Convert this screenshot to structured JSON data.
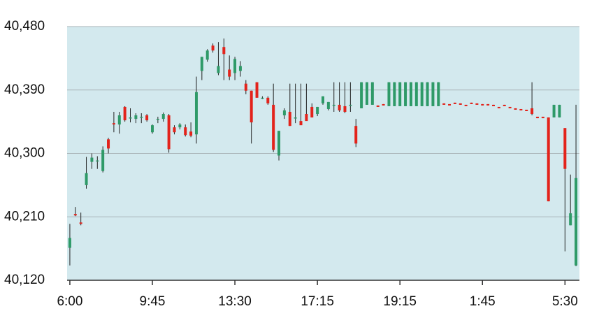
{
  "chart_data": {
    "type": "candlestick",
    "categories": [
      "6:00",
      null,
      null,
      null,
      null,
      null,
      null,
      null,
      null,
      null,
      null,
      null,
      null,
      null,
      null,
      "9:45",
      null,
      null,
      null,
      null,
      null,
      null,
      null,
      null,
      null,
      null,
      null,
      null,
      null,
      null,
      "13:30",
      null,
      null,
      null,
      null,
      null,
      null,
      null,
      null,
      null,
      null,
      null,
      null,
      null,
      null,
      "17:15",
      null,
      null,
      null,
      null,
      null,
      null,
      null,
      null,
      null,
      null,
      null,
      null,
      null,
      null,
      "19:15",
      null,
      null,
      null,
      null,
      null,
      null,
      null,
      null,
      null,
      null,
      null,
      null,
      null,
      null,
      "1:45",
      null,
      null,
      null,
      null,
      null,
      null,
      null,
      null,
      null,
      null,
      null,
      null,
      null,
      null,
      "5:30",
      null,
      null
    ],
    "open": [
      40166,
      40214,
      40202,
      40255,
      40288,
      40290,
      40275,
      40320,
      40343,
      40341,
      40366,
      40351,
      40349,
      40352,
      40354,
      40330,
      40349,
      40349,
      40354,
      40337,
      40337,
      40337,
      40331,
      40327,
      40417,
      40433,
      40453,
      40414,
      40451,
      40419,
      40414,
      40417,
      40399,
      40389,
      40401,
      40379,
      40379,
      40369,
      40297,
      40354,
      40359,
      40351,
      40346,
      40356,
      40366,
      40356,
      40371,
      40363,
      40369,
      40369,
      40367,
      40369,
      40339,
      40364,
      40369,
      40369,
      40368,
      40370,
      40367,
      40367,
      40367,
      40367,
      40367,
      40367,
      40367,
      40367,
      40367,
      40367,
      40371,
      40370,
      40372,
      40371,
      40369,
      40372,
      40371,
      40370,
      40370,
      40369,
      40366,
      40369,
      40366,
      40364,
      40363,
      40362,
      40364,
      40352,
      40352,
      40351,
      40351,
      40351,
      40336,
      40198,
      40141
    ],
    "high": [
      40200,
      40224,
      40216,
      40295,
      40300,
      40296,
      40310,
      40322,
      40359,
      40359,
      40367,
      40364,
      40357,
      40357,
      40356,
      40341,
      40352,
      40358,
      40356,
      40340,
      40343,
      40341,
      40344,
      40409,
      40437,
      40448,
      40456,
      40458,
      40463,
      40439,
      40437,
      40431,
      40404,
      40389,
      40401,
      40381,
      40381,
      40399,
      40332,
      40364,
      40399,
      40399,
      40399,
      40399,
      40371,
      40366,
      40381,
      40373,
      40401,
      40401,
      40401,
      40401,
      40349,
      40401,
      40401,
      40401,
      40368,
      40370,
      40401,
      40401,
      40401,
      40401,
      40401,
      40401,
      40401,
      40401,
      40401,
      40401,
      40371,
      40370,
      40372,
      40371,
      40369,
      40372,
      40371,
      40370,
      40370,
      40369,
      40366,
      40369,
      40366,
      40364,
      40363,
      40362,
      40401,
      40352,
      40352,
      40351,
      40369,
      40369,
      40336,
      40270,
      40369
    ],
    "low": [
      40141,
      40211,
      40198,
      40250,
      40278,
      40278,
      40273,
      40300,
      40330,
      40328,
      40345,
      40344,
      40343,
      40343,
      40345,
      40328,
      40343,
      40345,
      40301,
      40327,
      40334,
      40324,
      40323,
      40314,
      40404,
      40430,
      40443,
      40411,
      40404,
      40404,
      40404,
      40409,
      40384,
      40314,
      40379,
      40377,
      40369,
      40302,
      40290,
      40349,
      40339,
      40343,
      40343,
      40349,
      40351,
      40353,
      40369,
      40361,
      40359,
      40359,
      40357,
      40359,
      40309,
      40364,
      40369,
      40369,
      40366,
      40368,
      40367,
      40367,
      40367,
      40367,
      40367,
      40367,
      40367,
      40367,
      40367,
      40367,
      40369,
      40368,
      40370,
      40369,
      40367,
      40370,
      40369,
      40368,
      40368,
      40367,
      40364,
      40367,
      40364,
      40362,
      40361,
      40360,
      40354,
      40350,
      40350,
      40232,
      40351,
      40351,
      40161,
      40198,
      40140
    ],
    "close": [
      40180,
      40212,
      40200,
      40272,
      40294,
      40290,
      40305,
      40307,
      40341,
      40354,
      40347,
      40351,
      40354,
      40352,
      40347,
      40340,
      40349,
      40356,
      40306,
      40330,
      40341,
      40326,
      40325,
      40387,
      40437,
      40446,
      40446,
      40424,
      40441,
      40409,
      40434,
      40424,
      40389,
      40344,
      40379,
      40379,
      40371,
      40305,
      40332,
      40361,
      40339,
      40351,
      40340,
      40346,
      40351,
      40366,
      40381,
      40373,
      40369,
      40361,
      40359,
      40369,
      40314,
      40401,
      40401,
      40401,
      40366,
      40368,
      40401,
      40401,
      40401,
      40401,
      40401,
      40401,
      40401,
      40401,
      40401,
      40401,
      40369,
      40368,
      40370,
      40369,
      40367,
      40370,
      40369,
      40368,
      40368,
      40367,
      40364,
      40367,
      40364,
      40362,
      40361,
      40360,
      40356,
      40350,
      40350,
      40232,
      40369,
      40369,
      40278,
      40215,
      40265
    ],
    "up_color": "#2e9a68",
    "down_color": "#e3231b",
    "ylim": [
      40120,
      40480
    ],
    "yticks": [
      {
        "value": 40120,
        "label": "40,120"
      },
      {
        "value": 40210,
        "label": "40,210"
      },
      {
        "value": 40300,
        "label": "40,300"
      },
      {
        "value": 40390,
        "label": "40,390"
      },
      {
        "value": 40480,
        "label": "40,480"
      }
    ],
    "grid": true
  }
}
